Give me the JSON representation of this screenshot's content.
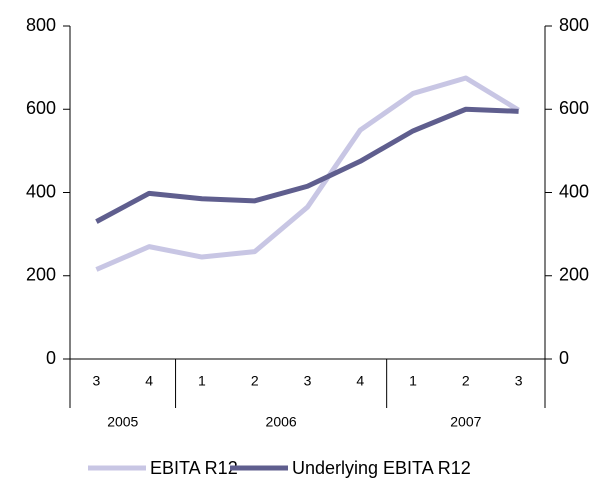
{
  "chart_data": {
    "type": "line",
    "categories": [
      "3",
      "4",
      "1",
      "2",
      "3",
      "4",
      "1",
      "2",
      "3"
    ],
    "year_groups": [
      {
        "name": "2005",
        "count": 2
      },
      {
        "name": "2006",
        "count": 4
      },
      {
        "name": "2007",
        "count": 3
      }
    ],
    "series": [
      {
        "name": "EBITA R12",
        "color": "#c8c6e4",
        "values": [
          215,
          270,
          245,
          258,
          365,
          550,
          638,
          675,
          598
        ]
      },
      {
        "name": "Underlying EBITA R12",
        "color": "#5f5e8e",
        "values": [
          330,
          398,
          385,
          380,
          415,
          475,
          548,
          600,
          595
        ]
      }
    ],
    "ylim": [
      0,
      800
    ],
    "yticks": [
      0,
      200,
      400,
      600,
      800
    ],
    "y2lim": [
      0,
      800
    ],
    "y2ticks": [
      0,
      200,
      400,
      600,
      800
    ],
    "legend": "bottom"
  }
}
